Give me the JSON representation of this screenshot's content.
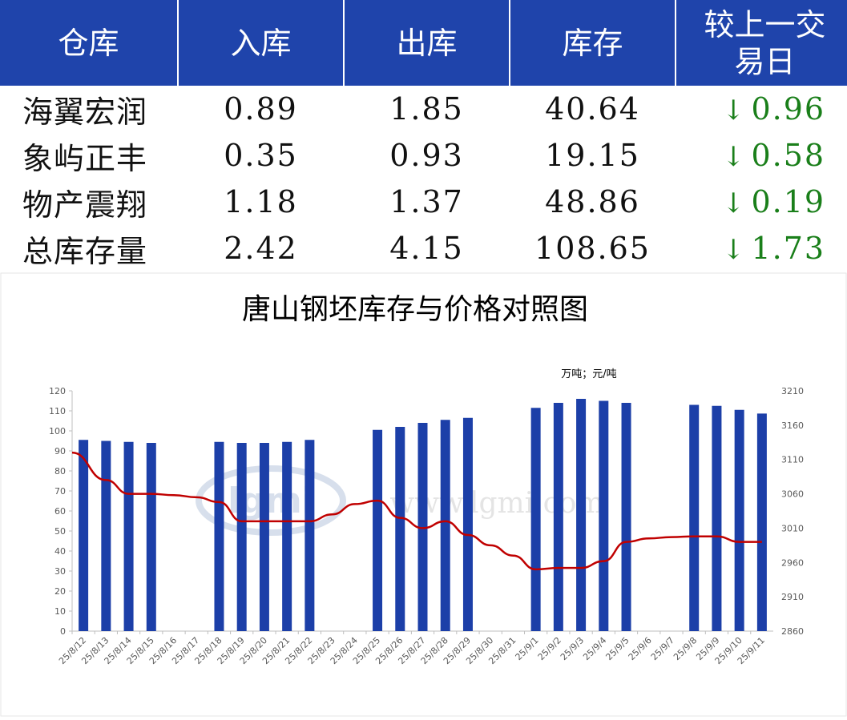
{
  "table": {
    "headers": [
      "仓库",
      "入库",
      "出库",
      "库存",
      "较上一交易日"
    ],
    "rows": [
      {
        "name": "海翼宏润",
        "in": "0.89",
        "out": "1.85",
        "stock": "40.64",
        "arrow": "↓",
        "delta": "0.96"
      },
      {
        "name": "象屿正丰",
        "in": "0.35",
        "out": "0.93",
        "stock": "19.15",
        "arrow": "↓",
        "delta": "0.58"
      },
      {
        "name": "物产震翔",
        "in": "1.18",
        "out": "1.37",
        "stock": "48.86",
        "arrow": "↓",
        "delta": "0.19"
      },
      {
        "name": "总库存量",
        "in": "2.42",
        "out": "4.15",
        "stock": "108.65",
        "arrow": "↓",
        "delta": "1.73"
      }
    ]
  },
  "watermark": {
    "logo": "lgmi",
    "url": "www.lgmi.com"
  },
  "chart_data": {
    "type": "bar",
    "title": "唐山钢坯库存与价格对照图",
    "unit_label": "万吨；元/吨",
    "categories": [
      "25/8/12",
      "25/8/13",
      "25/8/14",
      "25/8/15",
      "25/8/16",
      "25/8/17",
      "25/8/18",
      "25/8/19",
      "25/8/20",
      "25/8/21",
      "25/8/22",
      "25/8/23",
      "25/8/24",
      "25/8/25",
      "25/8/26",
      "25/8/27",
      "25/8/28",
      "25/8/29",
      "25/8/30",
      "25/8/31",
      "25/9/1",
      "25/9/2",
      "25/9/3",
      "25/9/4",
      "25/9/5",
      "25/9/6",
      "25/9/7",
      "25/9/8",
      "25/9/9",
      "25/9/10",
      "25/9/11"
    ],
    "series": [
      {
        "type": "bar",
        "axis": "left",
        "color": "#1c3fa8",
        "values": [
          95.5,
          95,
          94.5,
          94,
          null,
          null,
          94.5,
          94,
          94,
          94.5,
          95.5,
          null,
          null,
          100.5,
          102,
          104,
          105.5,
          106.5,
          null,
          null,
          111.5,
          114,
          116,
          115,
          114,
          null,
          null,
          113,
          112.5,
          110.5,
          108.65
        ]
      },
      {
        "type": "line",
        "axis": "right",
        "color": "#c00000",
        "values": [
          3120,
          3080,
          3060,
          3060,
          3058,
          3055,
          3048,
          3020,
          3020,
          3020,
          3020,
          3030,
          3045,
          3050,
          3025,
          3010,
          3020,
          3000,
          2985,
          2970,
          2950,
          2952,
          2952,
          2962,
          2990,
          2995,
          2997,
          2998,
          2998,
          2990,
          2990
        ]
      }
    ],
    "y_left": {
      "min": 0,
      "max": 120,
      "ticks": [
        0,
        10,
        20,
        30,
        40,
        50,
        60,
        70,
        80,
        90,
        100,
        110,
        120
      ]
    },
    "y_right": {
      "min": 2860,
      "max": 3210,
      "ticks": [
        2860,
        2910,
        2960,
        3010,
        3060,
        3110,
        3160,
        3210
      ]
    },
    "grid": false,
    "legend": "none"
  }
}
